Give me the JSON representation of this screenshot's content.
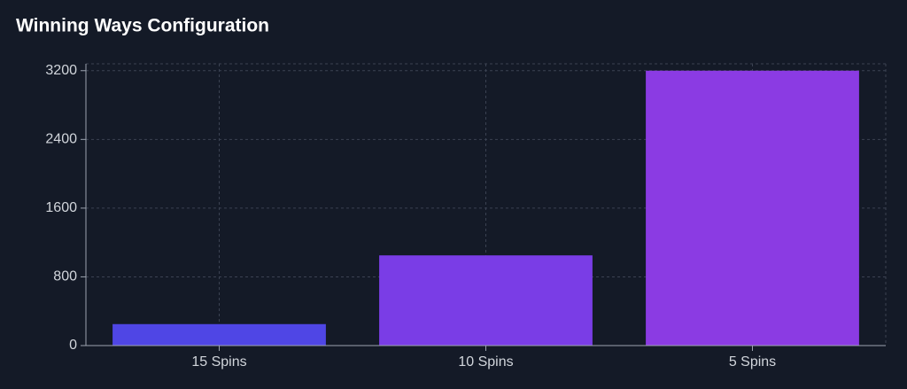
{
  "chart_data": {
    "type": "bar",
    "title": "Winning Ways Configuration",
    "categories": [
      "15 Spins",
      "10 Spins",
      "5 Spins"
    ],
    "values": [
      250,
      1050,
      3200
    ],
    "colors": [
      "#4f46e5",
      "#7a3de6",
      "#8b3be3"
    ],
    "ylim": [
      0,
      3280
    ],
    "yticks": [
      0,
      800,
      1600,
      2400,
      3200
    ],
    "grid": true
  }
}
